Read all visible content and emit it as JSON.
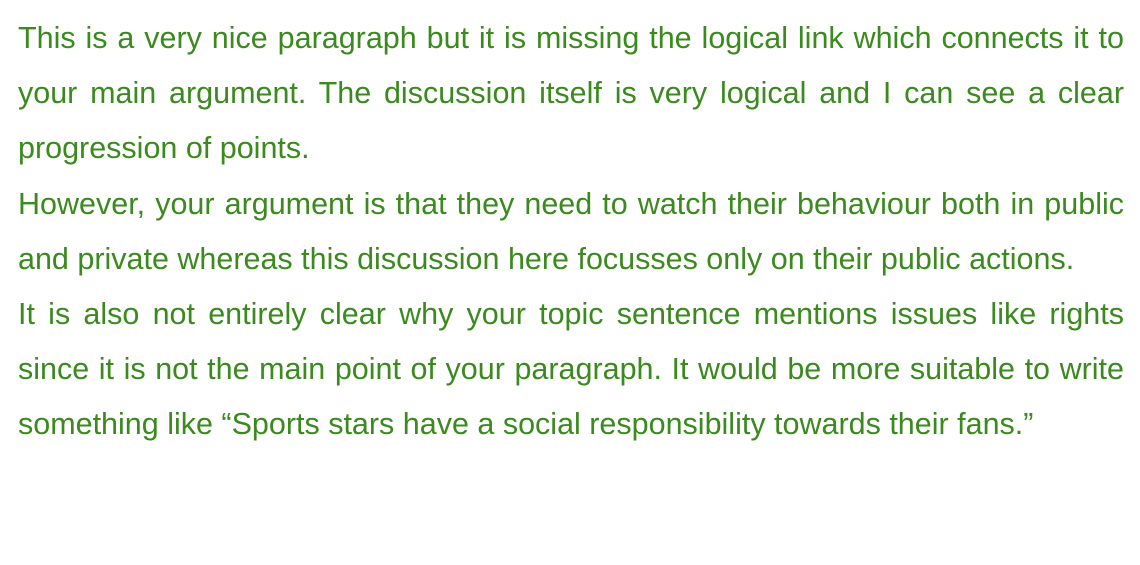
{
  "comment": {
    "paragraphs": [
      "This is a very nice paragraph but it is missing the logical link which connects it to your main argument. The discussion itself is very logical and I can see a clear progression of points.",
      "However, your argument is that they need to watch their behaviour both in public and private whereas this discussion here focusses only on their public actions.",
      "It is also not entirely clear why your topic sentence mentions issues like rights since it is not the main point of your paragraph. It would be more suitable to write something like “Sports stars have a social responsibility towards their fans.”"
    ]
  },
  "colors": {
    "text": "#3a8a1e",
    "background": "#ffffff"
  }
}
